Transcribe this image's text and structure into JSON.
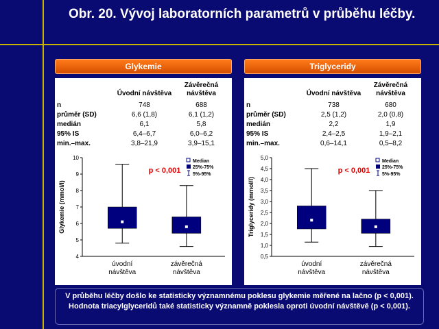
{
  "title": "Obr. 20. Vývoj laboratorních parametrů v průběhu léčby.",
  "footer": "V průběhu léčby došlo ke statisticky významnému poklesu glykemie měřené na lačno (p < 0,001). Hodnota triacylglyceridů také statisticky významně poklesla oproti úvodní návštěvě (p < 0,001).",
  "panels": [
    {
      "header": "Glykemie",
      "columns": [
        "Úvodní návštěva",
        "Závěrečná návštěva"
      ],
      "rows": [
        {
          "label": "n",
          "v1": "748",
          "v2": "688"
        },
        {
          "label": "průměr (SD)",
          "v1": "6,6 (1,8)",
          "v2": "6,1 (1,2)"
        },
        {
          "label": "medián",
          "v1": "6,1",
          "v2": "5,8"
        },
        {
          "label": "95% IS",
          "v1": "6,4–6,7",
          "v2": "6,0–6,2"
        },
        {
          "label": "min.–max.",
          "v1": "3,8–21,9",
          "v2": "3,9–15,1"
        }
      ]
    },
    {
      "header": "Triglyceridy",
      "columns": [
        "Úvodní návštěva",
        "Závěrečná návštěva"
      ],
      "rows": [
        {
          "label": "n",
          "v1": "738",
          "v2": "680"
        },
        {
          "label": "průměr (SD)",
          "v1": "2,5 (1,2)",
          "v2": "2,0 (0,8)"
        },
        {
          "label": "medián",
          "v1": "2,2",
          "v2": "1,9"
        },
        {
          "label": "95% IS",
          "v1": "2,4–2,5",
          "v2": "1,9–2,1"
        },
        {
          "label": "min.–max.",
          "v1": "0,6–14,1",
          "v2": "0,5–8,2"
        }
      ]
    }
  ],
  "chart_data": [
    {
      "type": "boxplot",
      "ylabel": "Glykemie (mmol/l)",
      "ylim": [
        4,
        10
      ],
      "yticks": [
        "4",
        "5",
        "6",
        "7",
        "8",
        "9",
        "10"
      ],
      "categories": [
        "úvodní\nnávštěva",
        "závěrečná\nnávštěva"
      ],
      "annotation": "p < 0,001",
      "legend": {
        "placement": "top-right",
        "items": [
          "Median",
          "25%-75%",
          "5%-95%"
        ]
      },
      "boxes": [
        {
          "p5": 4.8,
          "q1": 5.7,
          "median": 6.1,
          "q3": 7.0,
          "p95": 9.6
        },
        {
          "p5": 4.6,
          "q1": 5.4,
          "median": 5.8,
          "q3": 6.4,
          "p95": 8.3
        }
      ]
    },
    {
      "type": "boxplot",
      "ylabel": "Triglyceridy (mmol/l)",
      "ylim": [
        0.5,
        5.0
      ],
      "yticks": [
        "0,5",
        "1,0",
        "1,5",
        "2,0",
        "2,5",
        "3,0",
        "3,5",
        "4,0",
        "4,5",
        "5,0"
      ],
      "categories": [
        "úvodní\nnávštěva",
        "závěrečná\nnávštěva"
      ],
      "annotation": "p < 0,001",
      "legend": {
        "placement": "top-right",
        "items": [
          "Median",
          "25%-75%",
          "5%-95%"
        ]
      },
      "boxes": [
        {
          "p5": 1.15,
          "q1": 1.75,
          "median": 2.15,
          "q3": 2.8,
          "p95": 4.5
        },
        {
          "p5": 0.95,
          "q1": 1.55,
          "median": 1.85,
          "q3": 2.2,
          "p95": 3.5
        }
      ]
    }
  ]
}
